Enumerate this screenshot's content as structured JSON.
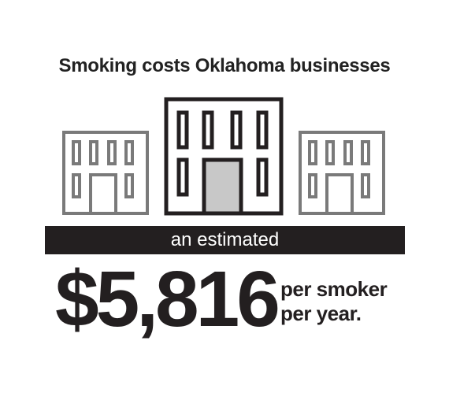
{
  "headline": "Smoking costs Oklahoma businesses",
  "banner": "an estimated",
  "amount": "$5,816",
  "suffix": {
    "line1": "per smoker",
    "line2": "per year."
  },
  "colors": {
    "text": "#231f20",
    "banner_bg": "#231f20",
    "banner_text": "#ffffff",
    "side_building": "#7a7a7a",
    "center_building": "#231f20",
    "door_fill": "#c8c8c8"
  },
  "icons": [
    "office-building-icon"
  ]
}
